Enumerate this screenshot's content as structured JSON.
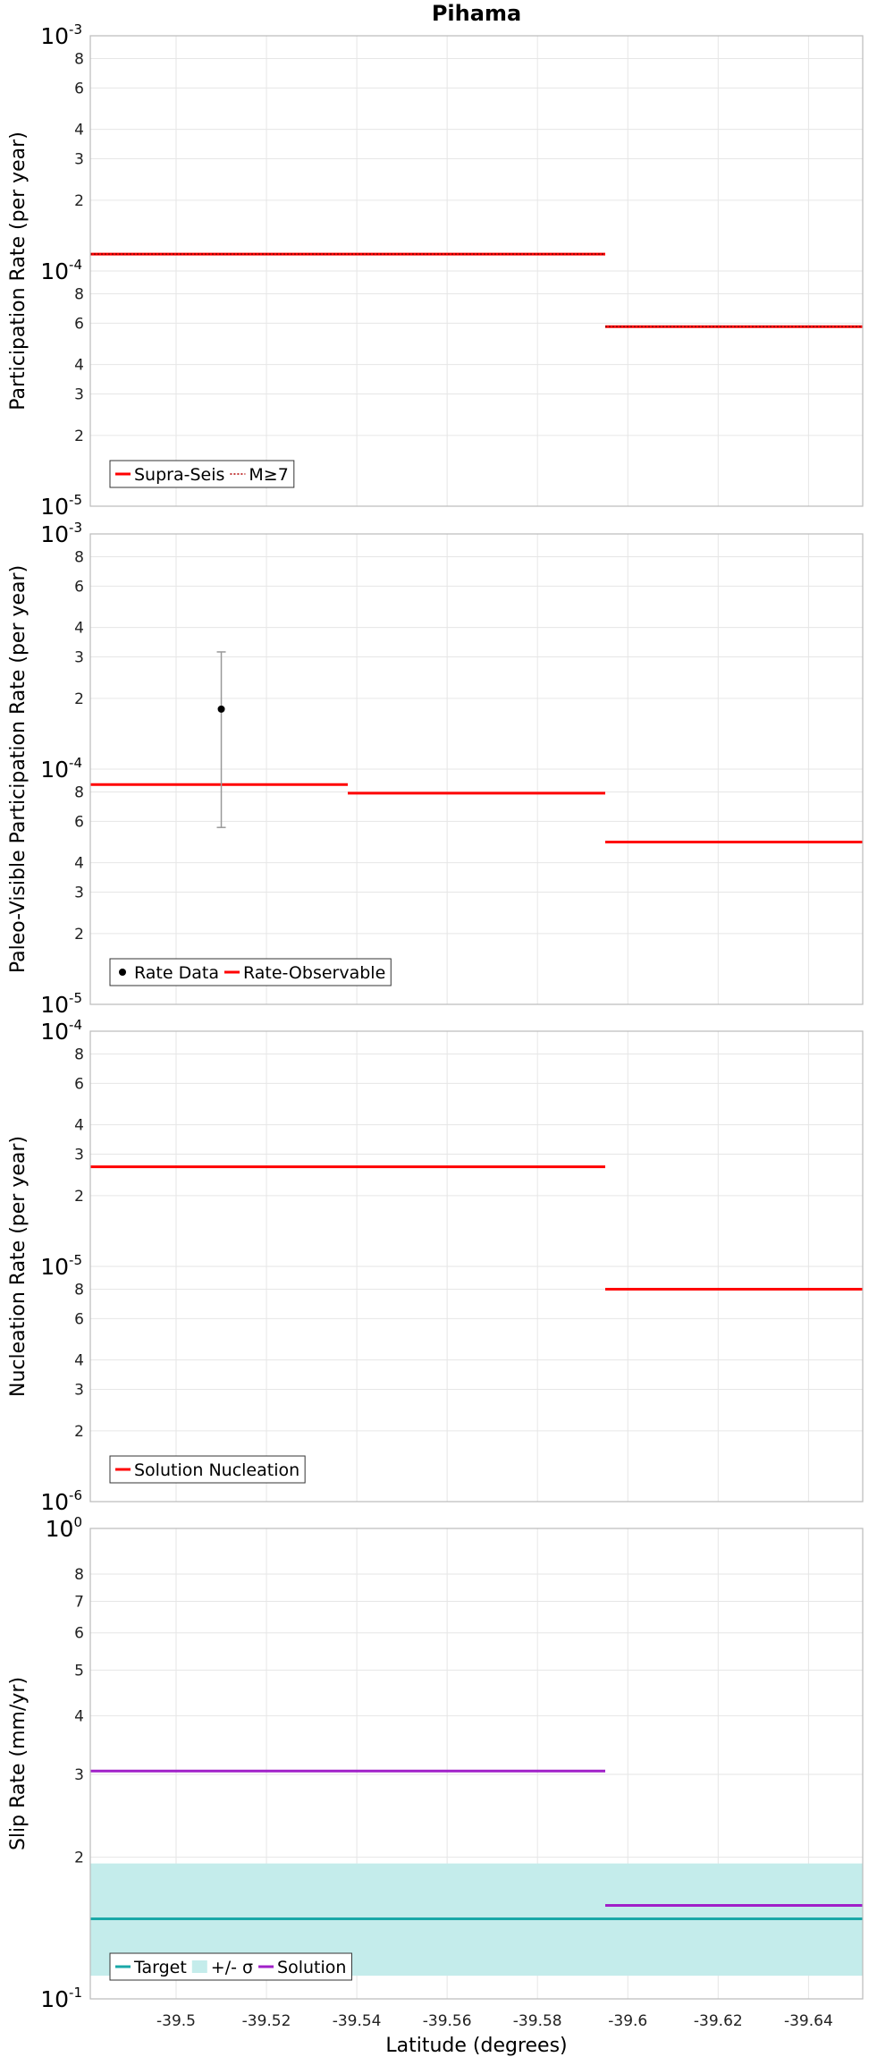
{
  "colors": {
    "red": "#ff0000",
    "teal": "#1aa8a8",
    "sigma_band": "#c4eceb",
    "magenta": "#a020c8",
    "black": "#000000",
    "errbar": "#999999",
    "grid": "#e6e6e6",
    "frame": "#bbbbbb"
  },
  "chart_data": [
    {
      "type": "line",
      "title": "Pihama",
      "xlabel": "",
      "ylabel": "Participation Rate (per year)",
      "yscale": "log",
      "ylim": [
        1e-05,
        0.001
      ],
      "xlim": [
        -39.481,
        -39.652
      ],
      "decades": [
        {
          "base": "10",
          "exp": "-3",
          "value": 0.001
        },
        {
          "base": "10",
          "exp": "-4",
          "value": 0.0001
        },
        {
          "base": "10",
          "exp": "-5",
          "value": 1e-05
        }
      ],
      "minor_ticks": [
        {
          "label": "8",
          "value": 0.0008
        },
        {
          "label": "6",
          "value": 0.0006
        },
        {
          "label": "4",
          "value": 0.0004
        },
        {
          "label": "3",
          "value": 0.0003
        },
        {
          "label": "2",
          "value": 0.0002
        },
        {
          "label": "8",
          "value": 8e-05
        },
        {
          "label": "6",
          "value": 6e-05
        },
        {
          "label": "4",
          "value": 4e-05
        },
        {
          "label": "3",
          "value": 3e-05
        },
        {
          "label": "2",
          "value": 2e-05
        }
      ],
      "series": [
        {
          "name": "Supra-Seis",
          "style": "solid",
          "color": "#ff0000",
          "segments": [
            {
              "x": [
                -39.481,
                -39.595
              ],
              "y": 0.000118
            },
            {
              "x": [
                -39.595,
                -39.652
              ],
              "y": 5.8e-05
            }
          ]
        },
        {
          "name": "M≥7",
          "style": "dotted",
          "color": "#ff0000",
          "segments": [
            {
              "x": [
                -39.481,
                -39.595
              ],
              "y": 0.000118
            },
            {
              "x": [
                -39.595,
                -39.652
              ],
              "y": 5.8e-05
            }
          ]
        }
      ],
      "legend": [
        {
          "label": "Supra-Seis",
          "kind": "line",
          "color": "#ff0000",
          "style": "solid"
        },
        {
          "label": "M≥7",
          "kind": "line",
          "color": "#ff0000",
          "style": "dotted"
        }
      ],
      "legend_position": "bottom-left"
    },
    {
      "type": "line",
      "title": "",
      "xlabel": "",
      "ylabel": "Paleo-Visible Participation Rate (per year)",
      "yscale": "log",
      "ylim": [
        1e-05,
        0.001
      ],
      "xlim": [
        -39.481,
        -39.652
      ],
      "decades": [
        {
          "base": "10",
          "exp": "-3",
          "value": 0.001
        },
        {
          "base": "10",
          "exp": "-4",
          "value": 0.0001
        },
        {
          "base": "10",
          "exp": "-5",
          "value": 1e-05
        }
      ],
      "minor_ticks": [
        {
          "label": "8",
          "value": 0.0008
        },
        {
          "label": "6",
          "value": 0.0006
        },
        {
          "label": "4",
          "value": 0.0004
        },
        {
          "label": "3",
          "value": 0.0003
        },
        {
          "label": "2",
          "value": 0.0002
        },
        {
          "label": "8",
          "value": 8e-05
        },
        {
          "label": "6",
          "value": 6e-05
        },
        {
          "label": "4",
          "value": 4e-05
        },
        {
          "label": "3",
          "value": 3e-05
        },
        {
          "label": "2",
          "value": 2e-05
        }
      ],
      "points": [
        {
          "name": "Rate Data",
          "x": -39.51,
          "y": 0.00018,
          "yerr_low": 5.65e-05,
          "yerr_high": 0.000315
        }
      ],
      "series": [
        {
          "name": "Rate-Observable",
          "style": "solid",
          "color": "#ff0000",
          "segments": [
            {
              "x": [
                -39.481,
                -39.538
              ],
              "y": 8.6e-05
            },
            {
              "x": [
                -39.538,
                -39.595
              ],
              "y": 7.9e-05
            },
            {
              "x": [
                -39.595,
                -39.652
              ],
              "y": 4.9e-05
            }
          ]
        }
      ],
      "legend": [
        {
          "label": "Rate Data",
          "kind": "point",
          "color": "#000000"
        },
        {
          "label": "Rate-Observable",
          "kind": "line",
          "color": "#ff0000",
          "style": "solid"
        }
      ],
      "legend_position": "bottom-left"
    },
    {
      "type": "line",
      "title": "",
      "xlabel": "",
      "ylabel": "Nucleation Rate (per year)",
      "yscale": "log",
      "ylim": [
        1e-06,
        0.0001
      ],
      "xlim": [
        -39.481,
        -39.652
      ],
      "decades": [
        {
          "base": "10",
          "exp": "-4",
          "value": 0.0001
        },
        {
          "base": "10",
          "exp": "-5",
          "value": 1e-05
        },
        {
          "base": "10",
          "exp": "-6",
          "value": 1e-06
        }
      ],
      "minor_ticks": [
        {
          "label": "8",
          "value": 8e-05
        },
        {
          "label": "6",
          "value": 6e-05
        },
        {
          "label": "4",
          "value": 4e-05
        },
        {
          "label": "3",
          "value": 3e-05
        },
        {
          "label": "2",
          "value": 2e-05
        },
        {
          "label": "8",
          "value": 8e-06
        },
        {
          "label": "6",
          "value": 6e-06
        },
        {
          "label": "4",
          "value": 4e-06
        },
        {
          "label": "3",
          "value": 3e-06
        },
        {
          "label": "2",
          "value": 2e-06
        }
      ],
      "series": [
        {
          "name": "Solution Nucleation",
          "style": "solid",
          "color": "#ff0000",
          "segments": [
            {
              "x": [
                -39.481,
                -39.595
              ],
              "y": 2.65e-05
            },
            {
              "x": [
                -39.595,
                -39.652
              ],
              "y": 8e-06
            }
          ]
        }
      ],
      "legend": [
        {
          "label": "Solution Nucleation",
          "kind": "line",
          "color": "#ff0000",
          "style": "solid"
        }
      ],
      "legend_position": "bottom-left"
    },
    {
      "type": "line",
      "title": "",
      "xlabel": "Latitude (degrees)",
      "ylabel": "Slip Rate (mm/yr)",
      "yscale": "log",
      "ylim": [
        0.1,
        1.0
      ],
      "xlim": [
        -39.481,
        -39.652
      ],
      "decades": [
        {
          "base": "10",
          "exp": "0",
          "value": 1.0
        },
        {
          "base": "10",
          "exp": "-1",
          "value": 0.1
        }
      ],
      "minor_ticks": [
        {
          "label": "8",
          "value": 0.8
        },
        {
          "label": "7",
          "value": 0.7
        },
        {
          "label": "6",
          "value": 0.6
        },
        {
          "label": "5",
          "value": 0.5
        },
        {
          "label": "4",
          "value": 0.4
        },
        {
          "label": "3",
          "value": 0.3
        },
        {
          "label": "2",
          "value": 0.2
        }
      ],
      "x_ticks": [
        {
          "label": "-39.5",
          "value": -39.5
        },
        {
          "label": "-39.52",
          "value": -39.52
        },
        {
          "label": "-39.54",
          "value": -39.54
        },
        {
          "label": "-39.56",
          "value": -39.56
        },
        {
          "label": "-39.58",
          "value": -39.58
        },
        {
          "label": "-39.6",
          "value": -39.6
        },
        {
          "label": "-39.62",
          "value": -39.62
        },
        {
          "label": "-39.64",
          "value": -39.64
        }
      ],
      "band": {
        "name": "+/- σ",
        "low": 0.112,
        "high": 0.194,
        "x": [
          -39.481,
          -39.652
        ]
      },
      "series": [
        {
          "name": "Target",
          "style": "solid",
          "color": "#1aa8a8",
          "segments": [
            {
              "x": [
                -39.481,
                -39.652
              ],
              "y": 0.148
            }
          ]
        },
        {
          "name": "Solution",
          "style": "solid",
          "color": "#a020c8",
          "segments": [
            {
              "x": [
                -39.481,
                -39.595
              ],
              "y": 0.305
            },
            {
              "x": [
                -39.595,
                -39.652
              ],
              "y": 0.158
            }
          ]
        }
      ],
      "legend": [
        {
          "label": "Target",
          "kind": "line",
          "color": "#1aa8a8",
          "style": "solid"
        },
        {
          "label": "+/- σ",
          "kind": "band",
          "color": "#c4eceb"
        },
        {
          "label": "Solution",
          "kind": "line",
          "color": "#a020c8",
          "style": "solid"
        }
      ],
      "legend_position": "bottom-left"
    }
  ]
}
